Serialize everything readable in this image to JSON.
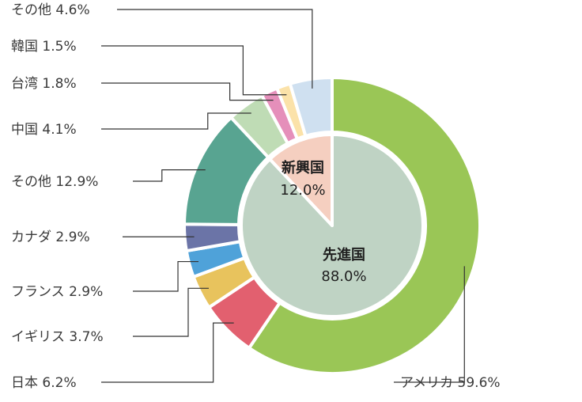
{
  "chart_data": {
    "type": "pie",
    "variant": "nested-donut",
    "inner_ring": [
      {
        "name": "先進国",
        "value": 88.0,
        "label_value": "88.0%",
        "color": "#bfd3c4"
      },
      {
        "name": "新興国",
        "value": 12.0,
        "label_value": "12.0%",
        "color": "#f5cfc0"
      }
    ],
    "outer_ring": [
      {
        "name": "アメリカ",
        "value": 59.6,
        "label": "アメリカ 59.6%",
        "color": "#9ac656"
      },
      {
        "name": "日本",
        "value": 6.2,
        "label": "日本 6.2%",
        "color": "#e2606f"
      },
      {
        "name": "イギリス",
        "value": 3.7,
        "label": "イギリス 3.7%",
        "color": "#e8c35d"
      },
      {
        "name": "フランス",
        "value": 2.9,
        "label": "フランス 2.9%",
        "color": "#4fa2d9"
      },
      {
        "name": "カナダ",
        "value": 2.9,
        "label": "カナダ 2.9%",
        "color": "#6b74a7"
      },
      {
        "name": "その他",
        "value": 12.9,
        "label": "その他 12.9%",
        "color": "#58a491"
      },
      {
        "name": "中国",
        "value": 4.1,
        "label": "中国 4.1%",
        "color": "#bfdcb5"
      },
      {
        "name": "台湾",
        "value": 1.8,
        "label": "台湾 1.8%",
        "color": "#e58fba"
      },
      {
        "name": "韓国",
        "value": 1.5,
        "label": "韓国 1.5%",
        "color": "#fbe2a9"
      },
      {
        "name": "その他",
        "value": 4.6,
        "label": "その他 4.6%",
        "color": "#cfe0f0"
      }
    ]
  }
}
